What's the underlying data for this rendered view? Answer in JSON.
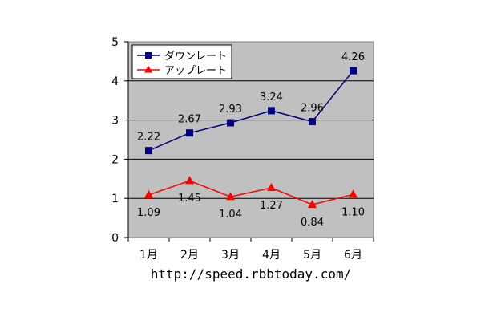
{
  "chart_data": {
    "type": "line",
    "title": "",
    "xlabel": "",
    "ylabel": "",
    "categories": [
      "1月",
      "2月",
      "3月",
      "4月",
      "5月",
      "6月"
    ],
    "ylim": [
      0,
      5
    ],
    "yticks": [
      0,
      1,
      2,
      3,
      4,
      5
    ],
    "grid": true,
    "legend_position": "top-left",
    "series": [
      {
        "name": "ダウンレート",
        "color": "#000080",
        "marker": "square",
        "values": [
          2.22,
          2.67,
          2.93,
          3.24,
          2.96,
          4.26
        ],
        "labels": [
          "2.22",
          "2.67",
          "2.93",
          "3.24",
          "2.96",
          "4.26"
        ]
      },
      {
        "name": "アップレート",
        "color": "#ff0000",
        "marker": "triangle",
        "values": [
          1.09,
          1.45,
          1.04,
          1.27,
          0.84,
          1.1
        ],
        "labels": [
          "1.09",
          "1.45",
          "1.04",
          "1.27",
          "0.84",
          "1.10"
        ]
      }
    ],
    "source": "http://speed.rbbtoday.com/"
  }
}
